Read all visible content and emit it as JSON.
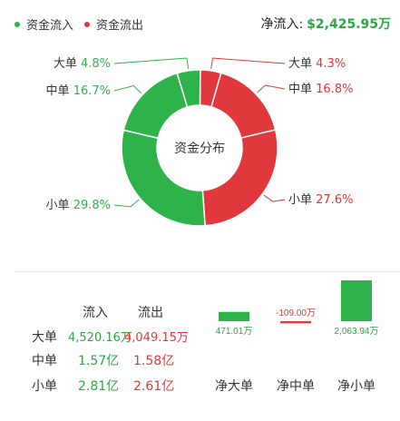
{
  "legend": {
    "inflow_label": "资金流入",
    "outflow_label": "资金流出",
    "inflow_color": "#2db34a",
    "outflow_color": "#e0383c"
  },
  "net_flow": {
    "label": "净流入:",
    "value": "$2,425.95万"
  },
  "chart_data": [
    {
      "type": "pie",
      "title": "资金分布",
      "slices": [
        {
          "label": "大单",
          "pct_text": "4.3%",
          "value": 4.3,
          "flow": "out"
        },
        {
          "label": "中单",
          "pct_text": "16.8%",
          "value": 16.8,
          "flow": "out"
        },
        {
          "label": "小单",
          "pct_text": "27.6%",
          "value": 27.6,
          "flow": "out"
        },
        {
          "label": "小单",
          "pct_text": "29.8%",
          "value": 29.8,
          "flow": "in"
        },
        {
          "label": "中单",
          "pct_text": "16.7%",
          "value": 16.7,
          "flow": "in"
        },
        {
          "label": "大单",
          "pct_text": "4.8%",
          "value": 4.8,
          "flow": "in"
        }
      ]
    },
    {
      "type": "bar",
      "categories": [
        "净大单",
        "净中单",
        "净小单"
      ],
      "values": [
        471.01,
        -109.0,
        2063.94
      ],
      "value_labels": [
        "471.01万",
        "-109.00万",
        "2,063.94万"
      ]
    }
  ],
  "table": {
    "headers": {
      "in": "流入",
      "out": "流出"
    },
    "rows": [
      {
        "label": "大单",
        "in": "4,520.16万",
        "out": "4,049.15万"
      },
      {
        "label": "中单",
        "in": "1.57亿",
        "out": "1.58亿"
      },
      {
        "label": "小单",
        "in": "2.81亿",
        "out": "2.61亿"
      }
    ]
  }
}
